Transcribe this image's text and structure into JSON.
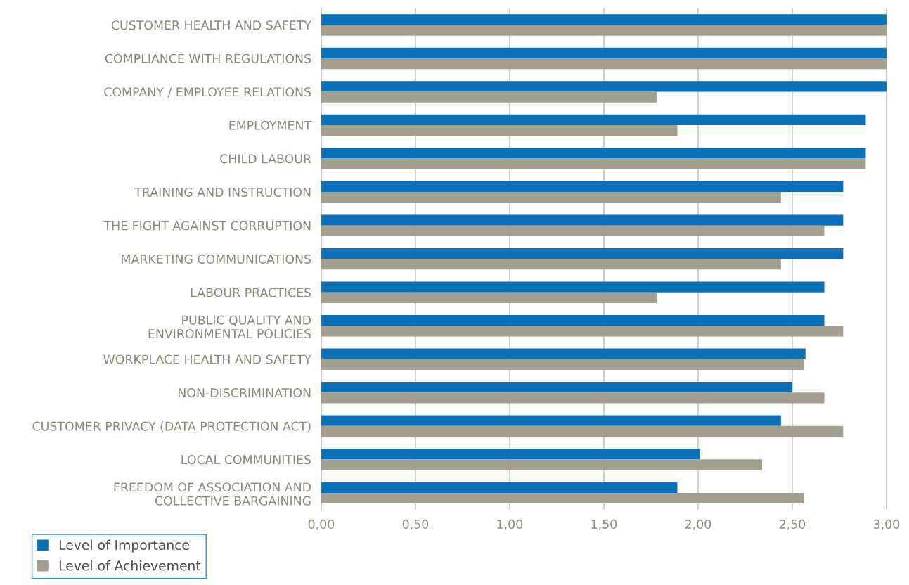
{
  "chart_data": {
    "type": "bar",
    "orientation": "horizontal",
    "categories": [
      "CUSTOMER HEALTH AND SAFETY",
      "COMPLIANCE WITH REGULATIONS",
      "COMPANY / EMPLOYEE RELATIONS",
      "EMPLOYMENT",
      "CHILD LABOUR",
      "TRAINING AND INSTRUCTION",
      "THE FIGHT AGAINST CORRUPTION",
      "MARKETING COMMUNICATIONS",
      "LABOUR PRACTICES",
      "PUBLIC QUALITY AND\nENVIRONMENTAL POLICIES",
      "WORKPLACE HEALTH AND SAFETY",
      "NON-DISCRIMINATION",
      "CUSTOMER PRIVACY (DATA PROTECTION ACT)",
      "LOCAL COMMUNITIES",
      "FREEDOM OF ASSOCIATION AND\nCOLLECTIVE BARGAINING"
    ],
    "series": [
      {
        "name": "Level of Importance",
        "color": "#0a70b8",
        "values": [
          3.0,
          3.0,
          3.0,
          2.89,
          2.89,
          2.77,
          2.77,
          2.77,
          2.67,
          2.67,
          2.57,
          2.5,
          2.44,
          2.01,
          1.89
        ]
      },
      {
        "name": "Level of Achievement",
        "color": "#a39e8d",
        "values": [
          3.0,
          3.0,
          1.78,
          1.89,
          2.89,
          2.44,
          2.67,
          2.44,
          1.78,
          2.77,
          2.56,
          2.67,
          2.77,
          2.34,
          2.56
        ]
      }
    ],
    "xlim": [
      0,
      3.0
    ],
    "xticks": [
      {
        "value": 0,
        "label": "0,00"
      },
      {
        "value": 0.5,
        "label": "0,50"
      },
      {
        "value": 1.0,
        "label": "1,00"
      },
      {
        "value": 1.5,
        "label": "1,50"
      },
      {
        "value": 2.0,
        "label": "2,00"
      },
      {
        "value": 2.5,
        "label": "2,50"
      },
      {
        "value": 3.0,
        "label": "3,00"
      }
    ],
    "grid": "x",
    "legend": "bottom left"
  }
}
